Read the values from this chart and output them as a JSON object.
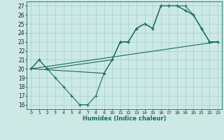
{
  "xlabel": "Humidex (Indice chaleur)",
  "ylabel": "",
  "bg_color": "#cce9e6",
  "grid_color": "#aad4cf",
  "line_color": "#1a6b5e",
  "xlim": [
    -0.5,
    23.5
  ],
  "ylim": [
    15.5,
    27.5
  ],
  "xticks": [
    0,
    1,
    2,
    3,
    4,
    5,
    6,
    7,
    8,
    9,
    10,
    11,
    12,
    13,
    14,
    15,
    16,
    17,
    18,
    19,
    20,
    21,
    22,
    23
  ],
  "yticks": [
    16,
    17,
    18,
    19,
    20,
    21,
    22,
    23,
    24,
    25,
    26,
    27
  ],
  "series1_x": [
    0,
    1,
    2,
    3,
    4,
    5,
    6,
    7,
    8,
    9,
    10,
    11,
    12,
    13,
    14,
    15,
    16,
    17,
    18,
    19,
    20,
    21,
    22,
    23
  ],
  "series1_y": [
    20,
    21,
    20,
    19,
    18,
    17,
    16,
    16,
    17,
    19.5,
    21,
    23,
    23,
    24.5,
    25,
    24.5,
    27,
    27,
    27,
    27,
    26,
    24.5,
    23,
    23
  ],
  "series2_x": [
    0,
    1,
    2,
    10,
    11,
    12,
    13,
    14,
    15,
    16,
    17,
    18,
    19,
    20,
    21,
    22,
    23
  ],
  "series2_y": [
    20,
    21,
    20,
    21,
    23,
    23,
    24.5,
    25,
    24.5,
    27,
    27,
    27,
    26.5,
    26,
    24.5,
    23,
    23
  ],
  "series3_x": [
    0,
    23
  ],
  "series3_y": [
    20,
    23
  ],
  "series4_x": [
    0,
    9,
    10,
    11,
    12,
    13,
    14,
    15,
    16,
    17,
    18,
    19,
    20,
    21,
    22,
    23
  ],
  "series4_y": [
    20,
    19.5,
    21,
    23,
    23,
    24.5,
    25,
    24.5,
    27,
    27,
    27,
    26.5,
    26,
    24.5,
    23,
    23
  ]
}
